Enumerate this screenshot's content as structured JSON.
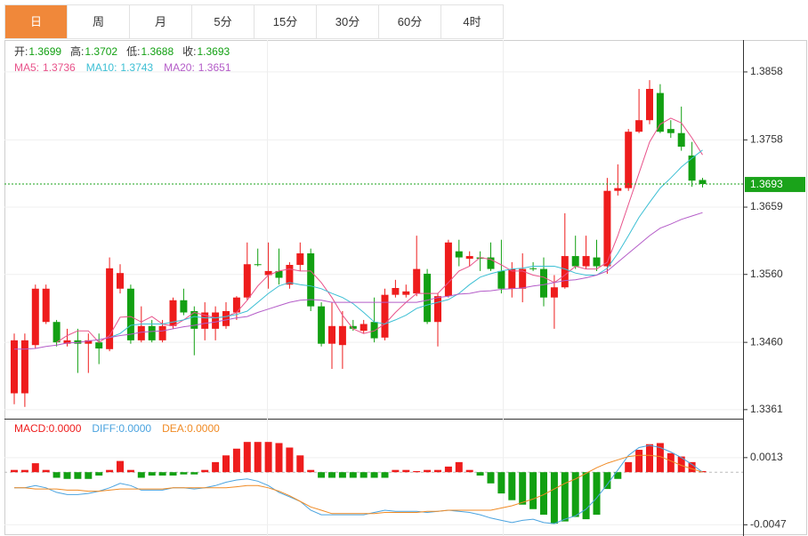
{
  "tabs": [
    "日",
    "周",
    "月",
    "5分",
    "15分",
    "30分",
    "60分",
    "4时"
  ],
  "chart_data": [
    {
      "type": "candlestick",
      "summary": [
        {
          "label": "开:",
          "value": 1.3699
        },
        {
          "label": "高:",
          "value": 1.3702
        },
        {
          "label": "低:",
          "value": 1.3688
        },
        {
          "label": "收:",
          "value": 1.3693
        }
      ],
      "open": [
        1.3385,
        1.3385,
        1.3456,
        1.349,
        1.349,
        1.3458,
        1.3463,
        1.3458,
        1.346,
        1.345,
        1.3539,
        1.3539,
        1.3463,
        1.3484,
        1.3463,
        1.3484,
        1.3522,
        1.3506,
        1.348,
        1.348,
        1.3484,
        1.3504,
        1.3526,
        1.3575,
        1.3559,
        1.3565,
        1.3545,
        1.3574,
        1.3591,
        1.3513,
        1.3458,
        1.3456,
        1.3484,
        1.3477,
        1.349,
        1.3467,
        1.353,
        1.353,
        1.3532,
        1.3561,
        1.349,
        1.3528,
        1.3594,
        1.3583,
        1.3585,
        1.3585,
        1.3565,
        1.3539,
        1.3539,
        1.3569,
        1.3568,
        1.3526,
        1.3541,
        1.3587,
        1.3572,
        1.3585,
        1.3572,
        1.3683,
        1.3687,
        1.377,
        1.3787,
        1.3827,
        1.3774,
        1.3768,
        1.3735,
        1.3699
      ],
      "high": [
        1.3473,
        1.3473,
        1.3545,
        1.3545,
        1.3493,
        1.348,
        1.348,
        1.3473,
        1.3473,
        1.3585,
        1.3575,
        1.3545,
        1.3513,
        1.3493,
        1.3493,
        1.3526,
        1.3539,
        1.3513,
        1.3519,
        1.3513,
        1.3519,
        1.3528,
        1.3607,
        1.3598,
        1.3607,
        1.3598,
        1.3578,
        1.3607,
        1.3598,
        1.3519,
        1.3519,
        1.3506,
        1.3493,
        1.3493,
        1.3526,
        1.3539,
        1.3552,
        1.3545,
        1.3617,
        1.3568,
        1.3532,
        1.3611,
        1.3611,
        1.3594,
        1.3594,
        1.3607,
        1.3611,
        1.3578,
        1.3591,
        1.3578,
        1.3585,
        1.3559,
        1.365,
        1.3617,
        1.3617,
        1.3611,
        1.3702,
        1.3722,
        1.3774,
        1.3833,
        1.3846,
        1.384,
        1.3787,
        1.3807,
        1.3755,
        1.3702
      ],
      "low": [
        1.3369,
        1.3365,
        1.3451,
        1.3487,
        1.3454,
        1.3454,
        1.3415,
        1.3415,
        1.3428,
        1.3447,
        1.3532,
        1.3458,
        1.346,
        1.346,
        1.346,
        1.348,
        1.35,
        1.3441,
        1.3463,
        1.3463,
        1.348,
        1.3493,
        1.3522,
        1.3572,
        1.3539,
        1.3545,
        1.3539,
        1.3565,
        1.3506,
        1.3454,
        1.3421,
        1.3421,
        1.3477,
        1.3473,
        1.346,
        1.3463,
        1.3526,
        1.3526,
        1.3528,
        1.3487,
        1.3454,
        1.3526,
        1.3572,
        1.3572,
        1.3565,
        1.3565,
        1.3532,
        1.3526,
        1.3519,
        1.3565,
        1.3513,
        1.348,
        1.3539,
        1.3568,
        1.3568,
        1.3565,
        1.3561,
        1.3676,
        1.3683,
        1.3768,
        1.3781,
        1.3768,
        1.3761,
        1.3742,
        1.3689,
        1.3688
      ],
      "close": [
        1.3463,
        1.3463,
        1.3539,
        1.3539,
        1.346,
        1.3463,
        1.3458,
        1.3463,
        1.3451,
        1.3569,
        1.3562,
        1.3463,
        1.3484,
        1.3463,
        1.3484,
        1.3522,
        1.3504,
        1.348,
        1.3504,
        1.3504,
        1.3506,
        1.3526,
        1.3575,
        1.3574,
        1.3565,
        1.3555,
        1.3574,
        1.3591,
        1.3513,
        1.3458,
        1.3484,
        1.3484,
        1.348,
        1.3487,
        1.3466,
        1.353,
        1.354,
        1.3535,
        1.3568,
        1.349,
        1.3528,
        1.3607,
        1.3585,
        1.3587,
        1.3583,
        1.3568,
        1.3539,
        1.3568,
        1.3568,
        1.3568,
        1.3526,
        1.3541,
        1.3587,
        1.3572,
        1.3587,
        1.3572,
        1.3683,
        1.3687,
        1.377,
        1.3787,
        1.3833,
        1.377,
        1.3768,
        1.3748,
        1.3698,
        1.3693
      ],
      "up_color": "#ee1c1c",
      "down_color": "#12a012",
      "series": [
        {
          "name": "MA5:",
          "color": "#e8528a",
          "legend_value": 1.3736,
          "values": [
            null,
            null,
            null,
            null,
            1.346,
            1.347,
            1.3477,
            1.3477,
            1.346,
            1.347,
            1.3497,
            1.3498,
            1.349,
            1.3498,
            1.3487,
            1.3484,
            1.3493,
            1.3504,
            1.35,
            1.3496,
            1.3498,
            1.3504,
            1.3522,
            1.3543,
            1.3559,
            1.3565,
            1.3568,
            1.3565,
            1.3565,
            1.3548,
            1.3526,
            1.35,
            1.348,
            1.3473,
            1.3477,
            1.3487,
            1.3504,
            1.3519,
            1.3532,
            1.3532,
            1.3532,
            1.3548,
            1.3565,
            1.3572,
            1.3585,
            1.3582,
            1.3574,
            1.3565,
            1.3565,
            1.3559,
            1.3556,
            1.3548,
            1.3559,
            1.3572,
            1.3568,
            1.3568,
            1.3578,
            1.3617,
            1.3663,
            1.3709,
            1.3755,
            1.3781,
            1.379,
            1.3783,
            1.3761,
            1.3736
          ]
        },
        {
          "name": "MA10:",
          "color": "#3cbfd4",
          "legend_value": 1.3743,
          "values": [
            null,
            null,
            null,
            null,
            null,
            null,
            null,
            null,
            null,
            1.3467,
            1.3473,
            1.3485,
            1.3487,
            1.3487,
            1.3487,
            1.349,
            1.3493,
            1.3498,
            1.3496,
            1.3496,
            1.3498,
            1.3501,
            1.3506,
            1.3519,
            1.3532,
            1.3543,
            1.3548,
            1.3545,
            1.3543,
            1.3539,
            1.3532,
            1.3526,
            1.3517,
            1.3504,
            1.349,
            1.3487,
            1.3493,
            1.35,
            1.351,
            1.3515,
            1.3519,
            1.3523,
            1.3532,
            1.3545,
            1.3556,
            1.3561,
            1.3565,
            1.3568,
            1.3569,
            1.3572,
            1.3572,
            1.3572,
            1.3568,
            1.3562,
            1.3559,
            1.3559,
            1.3569,
            1.3591,
            1.3617,
            1.3644,
            1.3666,
            1.3687,
            1.3702,
            1.3718,
            1.3731,
            1.3743
          ]
        },
        {
          "name": "MA20:",
          "color": "#b45cc8",
          "legend_value": 1.3651,
          "values": [
            1.345,
            1.345,
            1.3451,
            1.3454,
            1.3456,
            1.3459,
            1.346,
            1.3462,
            1.3464,
            1.3467,
            1.347,
            1.3472,
            1.3475,
            1.3476,
            1.3477,
            1.348,
            1.3483,
            1.3485,
            1.3488,
            1.349,
            1.3493,
            1.3496,
            1.3498,
            1.3504,
            1.3509,
            1.3514,
            1.3519,
            1.3522,
            1.3523,
            1.3522,
            1.3519,
            1.3519,
            1.3519,
            1.3519,
            1.3519,
            1.3519,
            1.3519,
            1.3519,
            1.3519,
            1.3522,
            1.3526,
            1.3528,
            1.3531,
            1.3532,
            1.3535,
            1.3536,
            1.3538,
            1.3539,
            1.354,
            1.3543,
            1.3545,
            1.3548,
            1.3551,
            1.3552,
            1.3555,
            1.3559,
            1.3565,
            1.3578,
            1.3591,
            1.3604,
            1.3617,
            1.3628,
            1.3634,
            1.3641,
            1.3646,
            1.3651
          ]
        }
      ],
      "last": 1.3693,
      "last_color": "#1aa31a",
      "ylim": [
        1.3349,
        1.3905
      ],
      "yticks": [
        1.3858,
        1.3758,
        1.3659,
        {
          "value": 1.356,
          "label": "1.3560"
        },
        {
          "value": 1.346,
          "label": "1.3460"
        },
        1.3361
      ],
      "grid": true
    },
    {
      "type": "macd",
      "histogram": {
        "name": "MACD:",
        "legend_value": 0,
        "legend_value_label": "0.0000",
        "up_color": "#ee1c1c",
        "down_color": "#12a012",
        "values": [
          0.0002,
          0.0002,
          0.0008,
          0.0002,
          -0.0005,
          -0.0006,
          -0.0006,
          -0.0006,
          -0.0003,
          0.0002,
          0.001,
          0.0002,
          -0.0005,
          -0.0003,
          -0.0003,
          -0.0003,
          -0.0002,
          -0.0002,
          0.0002,
          0.0009,
          0.0015,
          0.0021,
          0.0027,
          0.0027,
          0.0027,
          0.0026,
          0.0022,
          0.0015,
          0.0002,
          -0.0005,
          -0.0005,
          -0.0005,
          -0.0005,
          -0.0005,
          -0.0005,
          -0.0005,
          0.0002,
          0.0002,
          0.0001,
          0.0002,
          0.0002,
          0.0005,
          0.0009,
          0.0002,
          -0.0003,
          -0.001,
          -0.0019,
          -0.0025,
          -0.0029,
          -0.0033,
          -0.0038,
          -0.0046,
          -0.0044,
          -0.004,
          -0.0042,
          -0.0038,
          -0.0015,
          -0.0006,
          0.0009,
          0.002,
          0.0025,
          0.0026,
          0.0017,
          0.0014,
          0.0009,
          0.0001
        ]
      },
      "series": [
        {
          "name": "DIFF:",
          "color": "#4aa3df",
          "legend_value": 0,
          "legend_value_label": "0.0000",
          "values": [
            -0.0014,
            -0.0014,
            -0.0012,
            -0.0014,
            -0.0018,
            -0.002,
            -0.002,
            -0.0019,
            -0.0017,
            -0.0014,
            -0.001,
            -0.0012,
            -0.0016,
            -0.0016,
            -0.0016,
            -0.0014,
            -0.0014,
            -0.0015,
            -0.0014,
            -0.0012,
            -0.0009,
            -0.0007,
            -0.0006,
            -0.0008,
            -0.0012,
            -0.0018,
            -0.0022,
            -0.0026,
            -0.0034,
            -0.0038,
            -0.0038,
            -0.0038,
            -0.0038,
            -0.0038,
            -0.0036,
            -0.0034,
            -0.0035,
            -0.0035,
            -0.0035,
            -0.0036,
            -0.0035,
            -0.0034,
            -0.0035,
            -0.0036,
            -0.0038,
            -0.0041,
            -0.0043,
            -0.0045,
            -0.0043,
            -0.0042,
            -0.0045,
            -0.0046,
            -0.0042,
            -0.0039,
            -0.0033,
            -0.0023,
            -0.0011,
            0.0002,
            0.0015,
            0.0022,
            0.0024,
            0.0022,
            0.0018,
            0.0013,
            0.0007,
            0
          ]
        },
        {
          "name": "DEA:",
          "color": "#f08a24",
          "legend_value": 0,
          "legend_value_label": "0.0000",
          "values": [
            -0.0014,
            -0.0014,
            -0.0015,
            -0.0015,
            -0.0015,
            -0.0016,
            -0.0016,
            -0.0017,
            -0.0017,
            -0.0016,
            -0.0015,
            -0.0015,
            -0.0015,
            -0.0015,
            -0.0015,
            -0.0014,
            -0.0014,
            -0.0014,
            -0.0014,
            -0.0014,
            -0.0014,
            -0.0013,
            -0.0012,
            -0.0012,
            -0.0014,
            -0.0017,
            -0.0021,
            -0.0026,
            -0.0031,
            -0.0034,
            -0.0037,
            -0.0037,
            -0.0037,
            -0.0037,
            -0.0037,
            -0.0036,
            -0.0036,
            -0.0036,
            -0.0036,
            -0.0035,
            -0.0035,
            -0.0034,
            -0.0034,
            -0.0034,
            -0.0034,
            -0.0034,
            -0.0032,
            -0.003,
            -0.0027,
            -0.0024,
            -0.002,
            -0.0015,
            -0.001,
            -0.0006,
            -0.0001,
            0.0004,
            0.0008,
            0.0011,
            0.0014,
            0.0015,
            0.0015,
            0.0014,
            0.001,
            0.0006,
            0.0003,
            0
          ]
        }
      ],
      "ylim": [
        -0.0057,
        0.0047
      ],
      "yticks": [
        0.0013,
        -0.0047
      ],
      "grid": true
    }
  ]
}
